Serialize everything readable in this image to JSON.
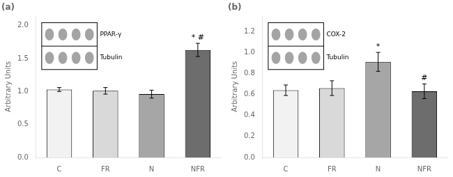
{
  "chart_data": [
    {
      "type": "bar",
      "title": "(a)",
      "categories": [
        "C",
        "FR",
        "N",
        "NFR"
      ],
      "values": [
        1.03,
        1.01,
        0.96,
        1.63
      ],
      "errors": [
        0.03,
        0.05,
        0.06,
        0.1
      ],
      "colors": [
        "#f2f2f2",
        "#d9d9d9",
        "#a6a6a6",
        "#6d6d6d"
      ],
      "edgecolor": "#000000",
      "errorbar_color": "#000000",
      "ylabel": "Arbitrary Units",
      "ylim": [
        0.0,
        2.15
      ],
      "yticks": [
        {
          "value": 0.0,
          "label": "0.0"
        },
        {
          "value": 0.5,
          "label": "0.5"
        },
        {
          "value": 1.0,
          "label": "1.0"
        },
        {
          "value": 1.5,
          "label": "1.5"
        },
        {
          "value": 2.0,
          "label": "2.0"
        }
      ],
      "annotations": [
        {
          "category": "NFR",
          "text": "* #"
        }
      ],
      "inset_labels": [
        "PPAR-γ",
        "Tubulin"
      ],
      "grid": false
    },
    {
      "type": "bar",
      "title": "(b)",
      "categories": [
        "C",
        "FR",
        "N",
        "NFR"
      ],
      "values": [
        0.64,
        0.66,
        0.91,
        0.63
      ],
      "errors": [
        0.05,
        0.07,
        0.09,
        0.07
      ],
      "colors": [
        "#f2f2f2",
        "#d9d9d9",
        "#a6a6a6",
        "#6d6d6d"
      ],
      "edgecolor": "#000000",
      "errorbar_color": "#000000",
      "ylabel": "Arbitrary Units",
      "ylim": [
        0.0,
        1.35
      ],
      "yticks": [
        {
          "value": 0.0,
          "label": "0.0"
        },
        {
          "value": 0.2,
          "label": "0.2"
        },
        {
          "value": 0.4,
          "label": "0.4"
        },
        {
          "value": 0.6,
          "label": "0.6"
        },
        {
          "value": 0.8,
          "label": "0.8"
        },
        {
          "value": 1.0,
          "label": "1.0"
        },
        {
          "value": 1.2,
          "label": "1.2"
        }
      ],
      "annotations": [
        {
          "category": "N",
          "text": "*"
        },
        {
          "category": "NFR",
          "text": "#"
        }
      ],
      "inset_labels": [
        "COX-2",
        "Tubulin"
      ],
      "grid": false
    }
  ]
}
